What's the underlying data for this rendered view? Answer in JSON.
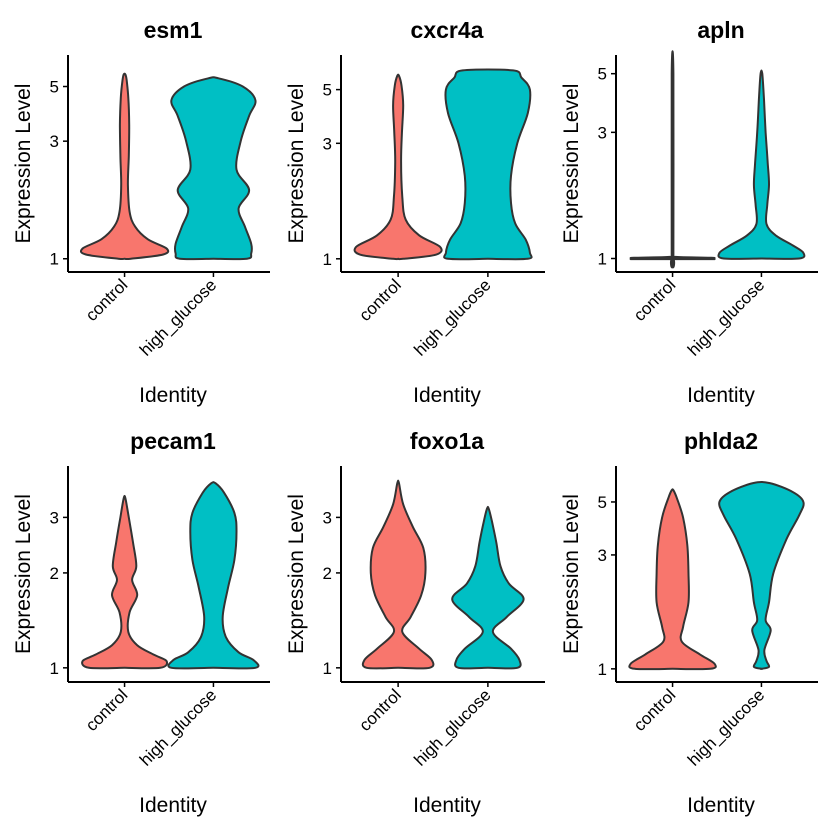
{
  "chart_data": [
    {
      "type": "violin",
      "title": "esm1",
      "ylabel": "Expression Level",
      "xlabel": "Identity",
      "y_scale": "log",
      "yticks": [
        1,
        3,
        5
      ],
      "ylim": [
        0.97,
        6.0
      ],
      "categories": [
        "control",
        "high_glucose"
      ],
      "colors": [
        "#F8766D",
        "#00BFC4"
      ],
      "series": [
        {
          "category": "control",
          "y_range": [
            1,
            5.6
          ],
          "profile": [
            [
              1,
              0.15
            ],
            [
              1.04,
              0.92
            ],
            [
              1.1,
              1.0
            ],
            [
              1.2,
              0.55
            ],
            [
              1.35,
              0.25
            ],
            [
              1.55,
              0.12
            ],
            [
              2.0,
              0.08
            ],
            [
              2.6,
              0.1
            ],
            [
              3.5,
              0.11
            ],
            [
              4.5,
              0.09
            ],
            [
              5.3,
              0.05
            ],
            [
              5.6,
              0.02
            ]
          ]
        },
        {
          "category": "high_glucose",
          "y_range": [
            1,
            5.4
          ],
          "profile": [
            [
              1,
              0.8
            ],
            [
              1.05,
              0.9
            ],
            [
              1.15,
              0.9
            ],
            [
              1.35,
              0.75
            ],
            [
              1.6,
              0.6
            ],
            [
              1.9,
              0.85
            ],
            [
              2.3,
              0.55
            ],
            [
              3.0,
              0.65
            ],
            [
              3.8,
              0.85
            ],
            [
              4.4,
              1.0
            ],
            [
              5.0,
              0.7
            ],
            [
              5.4,
              0.12
            ]
          ]
        }
      ]
    },
    {
      "type": "violin",
      "title": "cxcr4a",
      "ylabel": "Expression Level",
      "xlabel": "Identity",
      "y_scale": "log",
      "yticks": [
        1,
        3,
        5
      ],
      "ylim": [
        0.97,
        6.2
      ],
      "categories": [
        "control",
        "high_glucose"
      ],
      "colors": [
        "#F8766D",
        "#00BFC4"
      ],
      "series": [
        {
          "category": "control",
          "y_range": [
            1,
            5.7
          ],
          "profile": [
            [
              1,
              0.12
            ],
            [
              1.04,
              0.9
            ],
            [
              1.12,
              1.0
            ],
            [
              1.25,
              0.5
            ],
            [
              1.45,
              0.18
            ],
            [
              1.8,
              0.1
            ],
            [
              2.5,
              0.07
            ],
            [
              3.3,
              0.09
            ],
            [
              4.3,
              0.12
            ],
            [
              5.2,
              0.08
            ],
            [
              5.7,
              0.02
            ]
          ]
        },
        {
          "category": "high_glucose",
          "y_range": [
            1,
            6.0
          ],
          "profile": [
            [
              1,
              0.95
            ],
            [
              1.06,
              1.0
            ],
            [
              1.2,
              0.9
            ],
            [
              1.4,
              0.65
            ],
            [
              1.7,
              0.55
            ],
            [
              2.2,
              0.55
            ],
            [
              3.0,
              0.7
            ],
            [
              4.0,
              0.95
            ],
            [
              5.0,
              1.0
            ],
            [
              5.6,
              0.8
            ],
            [
              6.0,
              0.6
            ]
          ]
        }
      ]
    },
    {
      "type": "violin",
      "title": "apln",
      "ylabel": "Expression Level",
      "xlabel": "Identity",
      "y_scale": "log",
      "yticks": [
        1,
        3,
        5
      ],
      "ylim": [
        0.97,
        5.3
      ],
      "categories": [
        "control",
        "high_glucose"
      ],
      "colors": [
        "#F8766D",
        "#00BFC4"
      ],
      "series": [
        {
          "category": "control",
          "y_range": [
            1,
            5.0
          ],
          "profile": [
            [
              1,
              0.04
            ],
            [
              0.995,
              1.0
            ],
            [
              1.005,
              1.0
            ],
            [
              1.015,
              0.04
            ],
            [
              1.05,
              0.02
            ],
            [
              5.0,
              0.02
            ]
          ]
        },
        {
          "category": "high_glucose",
          "y_range": [
            1,
            5.0
          ],
          "profile": [
            [
              1,
              0.9
            ],
            [
              1.05,
              1.0
            ],
            [
              1.12,
              0.75
            ],
            [
              1.22,
              0.35
            ],
            [
              1.35,
              0.12
            ],
            [
              1.6,
              0.14
            ],
            [
              1.9,
              0.18
            ],
            [
              2.3,
              0.15
            ],
            [
              3.0,
              0.1
            ],
            [
              4.0,
              0.06
            ],
            [
              5.0,
              0.02
            ]
          ]
        }
      ]
    },
    {
      "type": "violin",
      "title": "pecam1",
      "ylabel": "Expression Level",
      "xlabel": "Identity",
      "y_scale": "log",
      "yticks": [
        1,
        2,
        3
      ],
      "ylim": [
        0.97,
        4.0
      ],
      "categories": [
        "control",
        "high_glucose"
      ],
      "colors": [
        "#F8766D",
        "#00BFC4"
      ],
      "series": [
        {
          "category": "control",
          "y_range": [
            1,
            3.45
          ],
          "profile": [
            [
              1,
              0.85
            ],
            [
              1.05,
              1.0
            ],
            [
              1.1,
              0.7
            ],
            [
              1.18,
              0.3
            ],
            [
              1.3,
              0.09
            ],
            [
              1.5,
              0.12
            ],
            [
              1.7,
              0.3
            ],
            [
              1.9,
              0.18
            ],
            [
              2.1,
              0.28
            ],
            [
              2.5,
              0.2
            ],
            [
              3.0,
              0.1
            ],
            [
              3.45,
              0.02
            ]
          ]
        },
        {
          "category": "high_glucose",
          "y_range": [
            1,
            3.85
          ],
          "profile": [
            [
              1,
              1.0
            ],
            [
              1.06,
              0.95
            ],
            [
              1.12,
              0.6
            ],
            [
              1.25,
              0.3
            ],
            [
              1.45,
              0.22
            ],
            [
              1.8,
              0.35
            ],
            [
              2.2,
              0.5
            ],
            [
              2.7,
              0.55
            ],
            [
              3.1,
              0.5
            ],
            [
              3.6,
              0.25
            ],
            [
              3.85,
              0.05
            ]
          ]
        }
      ]
    },
    {
      "type": "violin",
      "title": "foxo1a",
      "ylabel": "Expression Level",
      "xlabel": "Identity",
      "y_scale": "log",
      "yticks": [
        1,
        2,
        3
      ],
      "ylim": [
        0.97,
        4.0
      ],
      "categories": [
        "control",
        "high_glucose"
      ],
      "colors": [
        "#F8766D",
        "#00BFC4"
      ],
      "series": [
        {
          "category": "control",
          "y_range": [
            1,
            3.85
          ],
          "profile": [
            [
              1,
              0.75
            ],
            [
              1.06,
              0.8
            ],
            [
              1.15,
              0.5
            ],
            [
              1.3,
              0.1
            ],
            [
              1.45,
              0.3
            ],
            [
              1.7,
              0.55
            ],
            [
              2.0,
              0.65
            ],
            [
              2.4,
              0.6
            ],
            [
              2.8,
              0.35
            ],
            [
              3.3,
              0.12
            ],
            [
              3.85,
              0.02
            ]
          ]
        },
        {
          "category": "high_glucose",
          "y_range": [
            1,
            3.2
          ],
          "profile": [
            [
              1,
              0.7
            ],
            [
              1.06,
              0.75
            ],
            [
              1.15,
              0.55
            ],
            [
              1.3,
              0.12
            ],
            [
              1.45,
              0.45
            ],
            [
              1.65,
              0.85
            ],
            [
              1.85,
              0.5
            ],
            [
              2.1,
              0.3
            ],
            [
              2.5,
              0.2
            ],
            [
              2.9,
              0.1
            ],
            [
              3.2,
              0.02
            ]
          ]
        }
      ]
    },
    {
      "type": "violin",
      "title": "phlda2",
      "ylabel": "Expression Level",
      "xlabel": "Identity",
      "y_scale": "log",
      "yticks": [
        1,
        3,
        5
      ],
      "ylim": [
        0.97,
        6.3
      ],
      "categories": [
        "control",
        "high_glucose"
      ],
      "colors": [
        "#F8766D",
        "#00BFC4"
      ],
      "series": [
        {
          "category": "control",
          "y_range": [
            1,
            5.6
          ],
          "profile": [
            [
              1,
              0.9
            ],
            [
              1.05,
              1.0
            ],
            [
              1.15,
              0.65
            ],
            [
              1.3,
              0.22
            ],
            [
              1.5,
              0.25
            ],
            [
              1.9,
              0.38
            ],
            [
              2.5,
              0.38
            ],
            [
              3.3,
              0.35
            ],
            [
              4.3,
              0.25
            ],
            [
              5.2,
              0.1
            ],
            [
              5.6,
              0.02
            ]
          ]
        },
        {
          "category": "high_glucose",
          "y_range": [
            1,
            6.0
          ],
          "profile": [
            [
              1,
              0.0
            ],
            [
              1.02,
              0.18
            ],
            [
              1.08,
              0.12
            ],
            [
              1.2,
              0.07
            ],
            [
              1.45,
              0.22
            ],
            [
              1.6,
              0.1
            ],
            [
              1.9,
              0.18
            ],
            [
              2.5,
              0.28
            ],
            [
              3.5,
              0.6
            ],
            [
              4.4,
              0.9
            ],
            [
              5.0,
              1.0
            ],
            [
              5.5,
              0.75
            ],
            [
              6.0,
              0.2
            ]
          ]
        }
      ]
    }
  ]
}
